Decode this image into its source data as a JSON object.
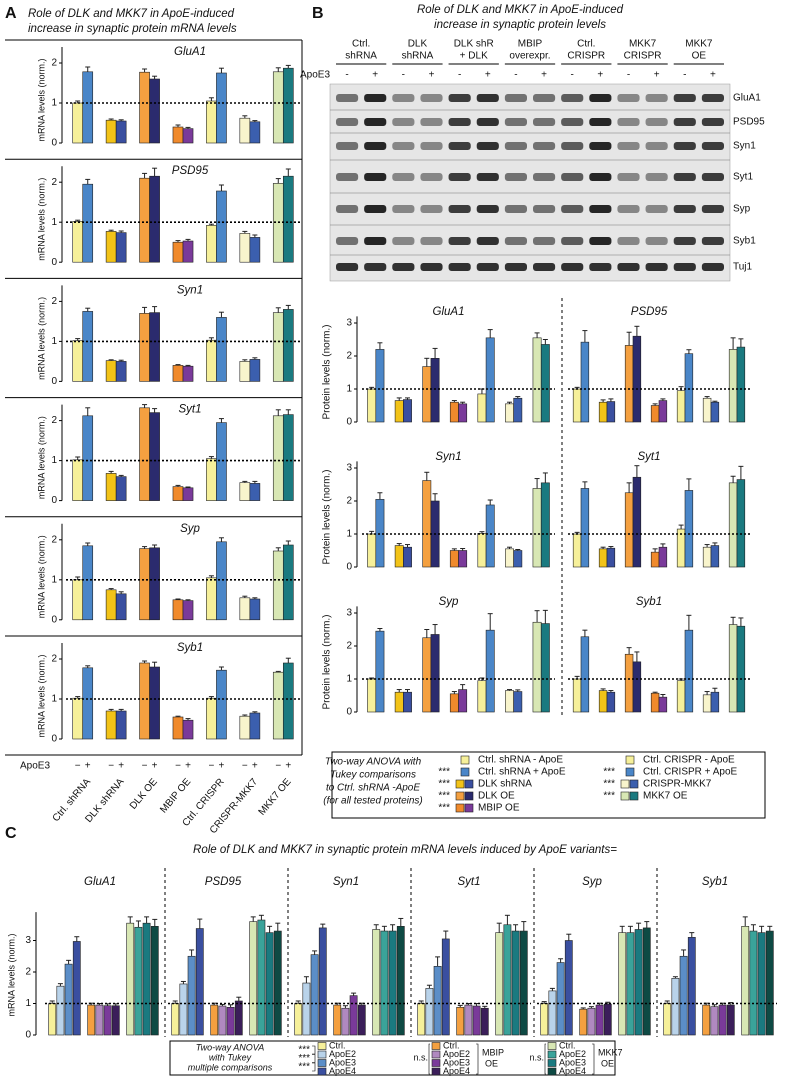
{
  "bar_colors": [
    "#f6f09a",
    "#4a86c8",
    "#f2c318",
    "#3a4fa0",
    "#f4a040",
    "#2b2b6e",
    "#f08a2c",
    "#7a3a9a",
    "#f6f09a",
    "#4a86c8",
    "#f8f4cc",
    "#3b5fae",
    "#d8e7b4",
    "#1a7a80"
  ],
  "panel_a": {
    "label": "A",
    "title": [
      "Role of DLK and MKK7 in ApoE-induced",
      "increase in synaptic protein mRNA levels"
    ],
    "y_label": "mRNA levels (norm.)",
    "x_label": "ApoE3",
    "signs": [
      "−",
      "+"
    ],
    "groups": [
      "Ctrl. shRNA",
      "DLK shRNA",
      "DLK OE",
      "MBIP OE",
      "Ctrl. CRISPR",
      "CRISPR-MKK7",
      "MKK7 OE"
    ],
    "ylim": [
      0,
      2.4
    ],
    "yticks": [
      0,
      1,
      2
    ],
    "refline": 1,
    "charts": [
      {
        "type": "bar",
        "title": "GluA1",
        "values": [
          1.0,
          1.78,
          0.57,
          0.55,
          1.77,
          1.6,
          0.4,
          0.36,
          1.05,
          1.75,
          0.62,
          0.53,
          1.78,
          1.87
        ],
        "errors": [
          0.05,
          0.12,
          0.03,
          0.03,
          0.08,
          0.07,
          0.05,
          0.03,
          0.08,
          0.12,
          0.06,
          0.03,
          0.1,
          0.07
        ]
      },
      {
        "type": "bar",
        "title": "PSD95",
        "values": [
          1.02,
          1.95,
          0.77,
          0.74,
          2.1,
          2.15,
          0.5,
          0.53,
          0.92,
          1.78,
          0.72,
          0.62,
          1.97,
          2.15
        ],
        "errors": [
          0.03,
          0.12,
          0.03,
          0.04,
          0.12,
          0.2,
          0.04,
          0.04,
          0.03,
          0.15,
          0.05,
          0.06,
          0.12,
          0.18
        ]
      },
      {
        "type": "bar",
        "title": "Syn1",
        "values": [
          1.02,
          1.75,
          0.52,
          0.5,
          1.7,
          1.72,
          0.4,
          0.38,
          1.03,
          1.6,
          0.5,
          0.55,
          1.72,
          1.8
        ],
        "errors": [
          0.05,
          0.08,
          0.02,
          0.03,
          0.15,
          0.15,
          0.02,
          0.02,
          0.06,
          0.13,
          0.04,
          0.04,
          0.12,
          0.1
        ]
      },
      {
        "type": "bar",
        "title": "Syt1",
        "values": [
          1.02,
          2.12,
          0.68,
          0.6,
          2.32,
          2.2,
          0.35,
          0.32,
          1.05,
          1.95,
          0.45,
          0.43,
          2.12,
          2.15
        ],
        "errors": [
          0.07,
          0.2,
          0.05,
          0.03,
          0.08,
          0.1,
          0.03,
          0.02,
          0.05,
          0.1,
          0.03,
          0.05,
          0.15,
          0.12
        ]
      },
      {
        "type": "bar",
        "title": "Syp",
        "values": [
          1.0,
          1.85,
          0.75,
          0.65,
          1.78,
          1.8,
          0.5,
          0.48,
          1.05,
          1.95,
          0.55,
          0.52,
          1.72,
          1.87
        ],
        "errors": [
          0.07,
          0.07,
          0.03,
          0.05,
          0.05,
          0.07,
          0.02,
          0.02,
          0.05,
          0.1,
          0.04,
          0.03,
          0.08,
          0.1
        ]
      },
      {
        "type": "bar",
        "title": "Syb1",
        "values": [
          1.02,
          1.78,
          0.7,
          0.7,
          1.9,
          1.8,
          0.55,
          0.47,
          1.02,
          1.72,
          0.57,
          0.65,
          1.67,
          1.9
        ],
        "errors": [
          0.04,
          0.05,
          0.04,
          0.04,
          0.05,
          0.12,
          0.02,
          0.04,
          0.04,
          0.08,
          0.03,
          0.03,
          0.02,
          0.12
        ]
      }
    ]
  },
  "panel_b": {
    "label": "B",
    "title": [
      "Role of DLK and MKK7 in ApoE-induced",
      "increase in synaptic protein levels"
    ],
    "blot": {
      "groups": [
        [
          "Ctrl.",
          "shRNA"
        ],
        [
          "DLK",
          "shRNA"
        ],
        [
          "DLK shR",
          "+ DLK"
        ],
        [
          "MBIP",
          "overexpr."
        ],
        [
          "Ctrl.",
          "CRISPR"
        ],
        [
          "MKK7",
          "CRISPR"
        ],
        [
          "MKK7",
          "OE"
        ]
      ],
      "apoe_label": "ApoE3",
      "signs": [
        "-",
        "+"
      ],
      "proteins": [
        "GluA1",
        "PSD95",
        "Syn1",
        "Syt1",
        "Syp",
        "Syb1",
        "Tuj1"
      ]
    },
    "y_label": "Protein levels (norm.)",
    "ylim": [
      0,
      3.2
    ],
    "yticks": [
      0,
      1,
      2,
      3
    ],
    "refline": 1,
    "charts": [
      {
        "type": "bar",
        "title": "GluA1",
        "values": [
          1.0,
          2.2,
          0.65,
          0.68,
          1.68,
          1.93,
          0.6,
          0.55,
          0.85,
          2.55,
          0.55,
          0.72,
          2.55,
          2.35
        ],
        "errors": [
          0.05,
          0.2,
          0.08,
          0.05,
          0.25,
          0.3,
          0.05,
          0.05,
          0.15,
          0.25,
          0.05,
          0.05,
          0.15,
          0.15
        ]
      },
      {
        "type": "bar",
        "title": "PSD95",
        "values": [
          1.0,
          2.42,
          0.6,
          0.62,
          2.32,
          2.6,
          0.5,
          0.65,
          0.95,
          2.07,
          0.72,
          0.6,
          2.2,
          2.27
        ],
        "errors": [
          0.05,
          0.35,
          0.07,
          0.08,
          0.4,
          0.3,
          0.05,
          0.05,
          0.12,
          0.12,
          0.05,
          0.03,
          0.35,
          0.25
        ]
      },
      {
        "type": "bar",
        "title": "Syn1",
        "values": [
          1.0,
          2.05,
          0.65,
          0.6,
          2.62,
          2.0,
          0.5,
          0.5,
          1.02,
          1.88,
          0.55,
          0.5,
          2.38,
          2.55
        ],
        "errors": [
          0.08,
          0.2,
          0.06,
          0.08,
          0.25,
          0.22,
          0.05,
          0.06,
          0.05,
          0.15,
          0.05,
          0.03,
          0.3,
          0.3
        ]
      },
      {
        "type": "bar",
        "title": "Syt1",
        "values": [
          1.0,
          2.38,
          0.55,
          0.57,
          2.25,
          2.72,
          0.45,
          0.6,
          1.15,
          2.32,
          0.6,
          0.65,
          2.55,
          2.65
        ],
        "errors": [
          0.05,
          0.2,
          0.05,
          0.05,
          0.3,
          0.35,
          0.1,
          0.1,
          0.12,
          0.35,
          0.08,
          0.08,
          0.2,
          0.4
        ]
      },
      {
        "type": "bar",
        "title": "Syp",
        "values": [
          1.0,
          2.45,
          0.6,
          0.6,
          2.25,
          2.35,
          0.55,
          0.68,
          0.95,
          2.48,
          0.65,
          0.62,
          2.72,
          2.68
        ],
        "errors": [
          0.03,
          0.08,
          0.08,
          0.08,
          0.25,
          0.3,
          0.07,
          0.15,
          0.08,
          0.5,
          0.03,
          0.05,
          0.35,
          0.4
        ]
      },
      {
        "type": "bar",
        "title": "Syb1",
        "values": [
          1.0,
          2.28,
          0.65,
          0.6,
          1.75,
          1.52,
          0.57,
          0.45,
          0.95,
          2.48,
          0.52,
          0.6,
          2.65,
          2.6
        ],
        "errors": [
          0.08,
          0.2,
          0.05,
          0.05,
          0.2,
          0.3,
          0.03,
          0.08,
          0.05,
          0.45,
          0.1,
          0.12,
          0.22,
          0.25
        ]
      }
    ],
    "legend": {
      "note": [
        "Two-way ANOVA with",
        "Tukey comparisons",
        "to Ctrl. shRNA -ApoE",
        "(for all tested proteins)"
      ],
      "columns": [
        [
          {
            "label": "Ctrl. shRNA - ApoE",
            "colors": [
              "#f6f09a"
            ]
          },
          {
            "label": "Ctrl. shRNA + ApoE",
            "colors": [
              "#4a86c8"
            ],
            "stars": "***"
          },
          {
            "label": "DLK shRNA",
            "colors": [
              "#f2c318",
              "#3a4fa0"
            ],
            "stars": "***"
          },
          {
            "label": "DLK OE",
            "colors": [
              "#f4a040",
              "#2b2b6e"
            ],
            "stars": "***"
          },
          {
            "label": "MBIP OE",
            "colors": [
              "#f08a2c",
              "#7a3a9a"
            ],
            "stars": "***"
          }
        ],
        [
          {
            "label": "Ctrl. CRISPR - ApoE",
            "colors": [
              "#f6f09a"
            ]
          },
          {
            "label": "Ctrl. CRISPR + ApoE",
            "colors": [
              "#4a86c8"
            ],
            "stars": "***"
          },
          {
            "label": "CRISPR-MKK7",
            "colors": [
              "#f8f4cc",
              "#3b5fae"
            ],
            "stars": "***"
          },
          {
            "label": "MKK7 OE",
            "colors": [
              "#d8e7b4",
              "#1a7a80"
            ],
            "stars": "***"
          }
        ]
      ]
    }
  },
  "panel_c": {
    "label": "C",
    "title": "Role of DLK and MKK7 in synaptic protein mRNA levels induced by ApoE variants=",
    "y_label": "mRNA levels (norm.)",
    "colors": [
      "#f6f09a",
      "#b9d3ea",
      "#5b8ec8",
      "#3a4fa0",
      "#f4a040",
      "#b089c0",
      "#7a3a9a",
      "#3b1e5a",
      "#d8e7b4",
      "#3aa39a",
      "#1a7a80",
      "#0e4a44"
    ],
    "ylim": [
      0,
      3.9
    ],
    "yticks": [
      0,
      1,
      2,
      3
    ],
    "refline": 1,
    "charts": [
      {
        "type": "bar",
        "title": "GluA1",
        "values": [
          1.0,
          1.55,
          2.25,
          2.97,
          0.95,
          0.95,
          0.93,
          0.93,
          3.55,
          3.42,
          3.55,
          3.45
        ],
        "errors": [
          0.08,
          0.08,
          0.12,
          0.15,
          0.06,
          0.05,
          0.06,
          0.06,
          0.2,
          0.2,
          0.2,
          0.22
        ]
      },
      {
        "type": "bar",
        "title": "PSD95",
        "values": [
          1.0,
          1.62,
          2.5,
          3.38,
          0.95,
          0.92,
          0.88,
          1.08,
          3.6,
          3.65,
          3.25,
          3.3
        ],
        "errors": [
          0.08,
          0.08,
          0.2,
          0.3,
          0.06,
          0.05,
          0.08,
          0.12,
          0.15,
          0.15,
          0.2,
          0.25
        ]
      },
      {
        "type": "bar",
        "title": "Syn1",
        "values": [
          1.0,
          1.65,
          2.55,
          3.4,
          0.95,
          0.85,
          1.25,
          0.95,
          3.35,
          3.3,
          3.3,
          3.45
        ],
        "errors": [
          0.08,
          0.2,
          0.12,
          0.12,
          0.06,
          0.08,
          0.08,
          0.06,
          0.15,
          0.15,
          0.2,
          0.25
        ]
      },
      {
        "type": "bar",
        "title": "Syt1",
        "values": [
          1.0,
          1.48,
          2.18,
          3.05,
          0.88,
          0.95,
          0.92,
          0.85,
          3.25,
          3.5,
          3.3,
          3.3
        ],
        "errors": [
          0.08,
          0.1,
          0.3,
          0.25,
          0.06,
          0.05,
          0.08,
          0.06,
          0.3,
          0.3,
          0.2,
          0.3
        ]
      },
      {
        "type": "bar",
        "title": "Syp",
        "values": [
          1.0,
          1.4,
          2.3,
          3.0,
          0.82,
          0.85,
          0.95,
          0.98,
          3.25,
          3.25,
          3.35,
          3.4
        ],
        "errors": [
          0.06,
          0.08,
          0.12,
          0.2,
          0.04,
          0.05,
          0.06,
          0.06,
          0.2,
          0.2,
          0.2,
          0.2
        ]
      },
      {
        "type": "bar",
        "title": "Syb1",
        "values": [
          1.0,
          1.8,
          2.5,
          3.1,
          0.95,
          0.9,
          0.95,
          0.95,
          3.45,
          3.3,
          3.25,
          3.3
        ],
        "errors": [
          0.08,
          0.05,
          0.2,
          0.15,
          0.06,
          0.06,
          0.06,
          0.08,
          0.3,
          0.2,
          0.2,
          0.15
        ]
      }
    ],
    "legend": {
      "note": [
        "Two-way ANOVA",
        "with Tukey",
        "multiple comparisons"
      ],
      "groups": [
        {
          "entries": [
            "Ctrl.",
            "ApoE2",
            "ApoE3",
            "ApoE4"
          ],
          "stars": [
            "***",
            "***",
            "***"
          ]
        },
        {
          "entries": [
            "Ctrl.",
            "ApoE2",
            "ApoE3",
            "ApoE4"
          ],
          "sig": "n.s.",
          "name": [
            "MBIP",
            "OE"
          ]
        },
        {
          "entries": [
            "Ctrl.",
            "ApoE2",
            "ApoE3",
            "ApoE4"
          ],
          "sig": "n.s.",
          "name": [
            "MKK7",
            "OE"
          ]
        }
      ]
    }
  }
}
